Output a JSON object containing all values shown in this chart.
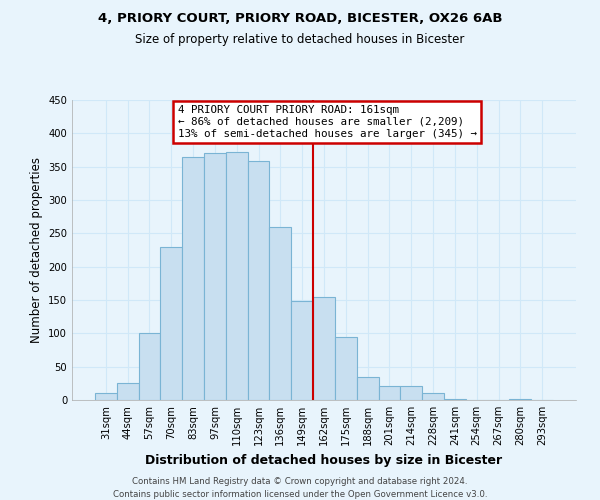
{
  "title1": "4, PRIORY COURT, PRIORY ROAD, BICESTER, OX26 6AB",
  "title2": "Size of property relative to detached houses in Bicester",
  "xlabel": "Distribution of detached houses by size in Bicester",
  "ylabel": "Number of detached properties",
  "bar_labels": [
    "31sqm",
    "44sqm",
    "57sqm",
    "70sqm",
    "83sqm",
    "97sqm",
    "110sqm",
    "123sqm",
    "136sqm",
    "149sqm",
    "162sqm",
    "175sqm",
    "188sqm",
    "201sqm",
    "214sqm",
    "228sqm",
    "241sqm",
    "254sqm",
    "267sqm",
    "280sqm",
    "293sqm"
  ],
  "bar_heights": [
    10,
    25,
    100,
    230,
    365,
    370,
    372,
    358,
    260,
    148,
    155,
    95,
    35,
    21,
    21,
    11,
    1,
    0,
    0,
    1,
    0
  ],
  "bar_color": "#c8dff0",
  "bar_edge_color": "#7ab4d4",
  "ylim": [
    0,
    450
  ],
  "yticks": [
    0,
    50,
    100,
    150,
    200,
    250,
    300,
    350,
    400,
    450
  ],
  "vline_color": "#cc0000",
  "annotation_title": "4 PRIORY COURT PRIORY ROAD: 161sqm",
  "annotation_line1": "← 86% of detached houses are smaller (2,209)",
  "annotation_line2": "13% of semi-detached houses are larger (345) →",
  "annotation_box_color": "#ffffff",
  "annotation_box_edge": "#cc0000",
  "footer1": "Contains HM Land Registry data © Crown copyright and database right 2024.",
  "footer2": "Contains public sector information licensed under the Open Government Licence v3.0.",
  "bg_color": "#e8f4fc",
  "plot_bg_color": "#e8f4fc",
  "grid_color": "#d0e8f8"
}
